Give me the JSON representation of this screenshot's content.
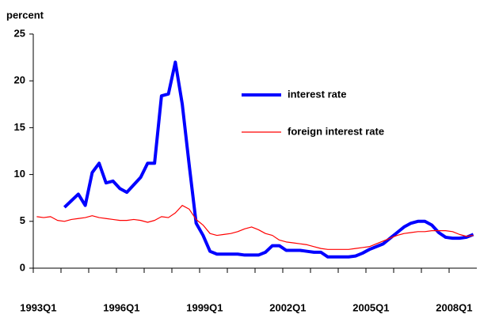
{
  "chart_data": {
    "type": "line",
    "y_label": "percent",
    "categories": [
      "1993Q1",
      null,
      null,
      null,
      null,
      null,
      null,
      null,
      null,
      null,
      null,
      null,
      "1996Q1",
      null,
      null,
      null,
      null,
      null,
      null,
      null,
      null,
      null,
      null,
      null,
      "1999Q1",
      null,
      null,
      null,
      null,
      null,
      null,
      null,
      null,
      null,
      null,
      null,
      "2002Q1",
      null,
      null,
      null,
      null,
      null,
      null,
      null,
      null,
      null,
      null,
      null,
      "2005Q1",
      null,
      null,
      null,
      null,
      null,
      null,
      null,
      null,
      null,
      null,
      null,
      "2008Q1",
      null,
      null,
      null
    ],
    "series": [
      {
        "name": "interest rate",
        "color": "#0000ff",
        "values": [
          null,
          null,
          null,
          null,
          6.5,
          7.2,
          7.9,
          6.7,
          10.2,
          11.2,
          9.1,
          9.3,
          8.5,
          8.1,
          8.9,
          9.7,
          11.2,
          11.2,
          18.4,
          18.6,
          22.0,
          17.5,
          11.0,
          4.8,
          3.5,
          1.8,
          1.5,
          1.5,
          1.5,
          1.5,
          1.4,
          1.4,
          1.4,
          1.7,
          2.4,
          2.4,
          1.9,
          1.9,
          1.9,
          1.8,
          1.7,
          1.7,
          1.2,
          1.2,
          1.2,
          1.2,
          1.3,
          1.6,
          2.0,
          2.3,
          2.6,
          3.2,
          3.8,
          4.4,
          4.8,
          5.0,
          5.0,
          4.6,
          3.8,
          3.3,
          3.2,
          3.2,
          3.3,
          3.6
        ]
      },
      {
        "name": "foreign interest rate",
        "color": "#ff0000",
        "values": [
          5.5,
          5.4,
          5.5,
          5.1,
          5.0,
          5.2,
          5.3,
          5.4,
          5.6,
          5.4,
          5.3,
          5.2,
          5.1,
          5.1,
          5.2,
          5.1,
          4.9,
          5.1,
          5.5,
          5.4,
          5.9,
          6.7,
          6.3,
          5.2,
          4.6,
          3.7,
          3.5,
          3.6,
          3.7,
          3.9,
          4.2,
          4.4,
          4.1,
          3.7,
          3.5,
          3.0,
          2.8,
          2.7,
          2.6,
          2.5,
          2.3,
          2.1,
          2.0,
          2.0,
          2.0,
          2.0,
          2.1,
          2.2,
          2.3,
          2.6,
          2.9,
          3.2,
          3.5,
          3.7,
          3.8,
          3.9,
          3.9,
          4.0,
          4.0,
          4.0,
          3.9,
          3.6,
          3.4,
          3.5
        ]
      }
    ],
    "ylim": [
      0,
      25
    ],
    "yticks": [
      0,
      5,
      10,
      15,
      20,
      25
    ]
  }
}
